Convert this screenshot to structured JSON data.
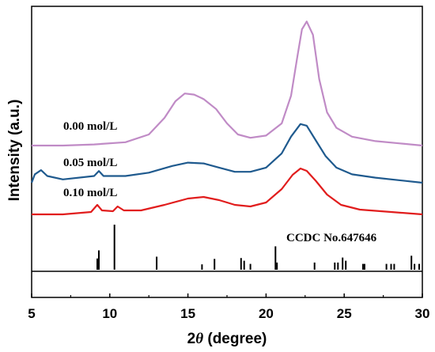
{
  "chart_data": {
    "type": "line",
    "xlabel_prefix": "2",
    "xlabel_symbol": "θ",
    "xlabel_suffix": " (degree)",
    "ylabel": "Intensity (a.u.)",
    "xlim": [
      5,
      30
    ],
    "x_ticks": [
      "5",
      "10",
      "15",
      "20",
      "25",
      "30"
    ],
    "y_ticks_shown": false,
    "grid": false,
    "series": [
      {
        "name": "0.00 mol/L",
        "color": "#c08bc6",
        "points": [
          [
            5,
            0.0
          ],
          [
            7,
            0.0
          ],
          [
            9,
            0.01
          ],
          [
            11,
            0.03
          ],
          [
            12.5,
            0.1
          ],
          [
            13.5,
            0.25
          ],
          [
            14.2,
            0.4
          ],
          [
            14.8,
            0.47
          ],
          [
            15.4,
            0.46
          ],
          [
            16,
            0.42
          ],
          [
            16.8,
            0.33
          ],
          [
            17.5,
            0.2
          ],
          [
            18.2,
            0.1
          ],
          [
            19,
            0.07
          ],
          [
            20,
            0.09
          ],
          [
            21,
            0.2
          ],
          [
            21.6,
            0.45
          ],
          [
            22,
            0.8
          ],
          [
            22.3,
            1.05
          ],
          [
            22.6,
            1.12
          ],
          [
            23,
            1.0
          ],
          [
            23.4,
            0.6
          ],
          [
            23.9,
            0.3
          ],
          [
            24.5,
            0.16
          ],
          [
            25.5,
            0.08
          ],
          [
            27,
            0.04
          ],
          [
            28.5,
            0.02
          ],
          [
            30,
            0.0
          ]
        ]
      },
      {
        "name": "0.05 mol/L",
        "color": "#1f5a8e",
        "points": [
          [
            5,
            0.0
          ],
          [
            5.2,
            0.1
          ],
          [
            5.6,
            0.15
          ],
          [
            6,
            0.08
          ],
          [
            7,
            0.04
          ],
          [
            9,
            0.08
          ],
          [
            9.3,
            0.14
          ],
          [
            9.6,
            0.08
          ],
          [
            11,
            0.08
          ],
          [
            12.5,
            0.12
          ],
          [
            14,
            0.2
          ],
          [
            15,
            0.24
          ],
          [
            16,
            0.23
          ],
          [
            17,
            0.18
          ],
          [
            18,
            0.13
          ],
          [
            19,
            0.13
          ],
          [
            20,
            0.18
          ],
          [
            21,
            0.35
          ],
          [
            21.6,
            0.55
          ],
          [
            22.2,
            0.7
          ],
          [
            22.6,
            0.68
          ],
          [
            23.2,
            0.5
          ],
          [
            23.8,
            0.32
          ],
          [
            24.5,
            0.18
          ],
          [
            25.5,
            0.1
          ],
          [
            27,
            0.06
          ],
          [
            30,
            0.0
          ]
        ]
      },
      {
        "name": "0.10 mol/L",
        "color": "#e11d1d",
        "points": [
          [
            5,
            0.0
          ],
          [
            7,
            0.0
          ],
          [
            8.8,
            0.03
          ],
          [
            9.2,
            0.12
          ],
          [
            9.5,
            0.05
          ],
          [
            10.2,
            0.04
          ],
          [
            10.5,
            0.1
          ],
          [
            10.9,
            0.05
          ],
          [
            12,
            0.05
          ],
          [
            13.5,
            0.12
          ],
          [
            15,
            0.2
          ],
          [
            16,
            0.22
          ],
          [
            17,
            0.18
          ],
          [
            18,
            0.12
          ],
          [
            19,
            0.1
          ],
          [
            20,
            0.15
          ],
          [
            21,
            0.32
          ],
          [
            21.7,
            0.5
          ],
          [
            22.2,
            0.58
          ],
          [
            22.6,
            0.55
          ],
          [
            23.2,
            0.42
          ],
          [
            23.9,
            0.25
          ],
          [
            24.8,
            0.12
          ],
          [
            26,
            0.06
          ],
          [
            28,
            0.03
          ],
          [
            30,
            0.0
          ]
        ]
      }
    ],
    "reference": {
      "name": "CCDC No.647646",
      "sticks": [
        {
          "x": 9.2,
          "h": 0.25
        },
        {
          "x": 9.3,
          "h": 0.43
        },
        {
          "x": 10.3,
          "h": 1.0
        },
        {
          "x": 13.0,
          "h": 0.29
        },
        {
          "x": 15.9,
          "h": 0.12
        },
        {
          "x": 16.7,
          "h": 0.24
        },
        {
          "x": 18.4,
          "h": 0.26
        },
        {
          "x": 18.6,
          "h": 0.2
        },
        {
          "x": 19.0,
          "h": 0.13
        },
        {
          "x": 20.6,
          "h": 0.52
        },
        {
          "x": 20.7,
          "h": 0.16
        },
        {
          "x": 23.1,
          "h": 0.16
        },
        {
          "x": 24.4,
          "h": 0.16
        },
        {
          "x": 24.6,
          "h": 0.16
        },
        {
          "x": 24.9,
          "h": 0.27
        },
        {
          "x": 25.1,
          "h": 0.2
        },
        {
          "x": 26.2,
          "h": 0.13
        },
        {
          "x": 26.3,
          "h": 0.13
        },
        {
          "x": 27.7,
          "h": 0.13
        },
        {
          "x": 28.0,
          "h": 0.13
        },
        {
          "x": 28.2,
          "h": 0.13
        },
        {
          "x": 29.3,
          "h": 0.31
        },
        {
          "x": 29.5,
          "h": 0.13
        },
        {
          "x": 29.8,
          "h": 0.13
        }
      ]
    }
  }
}
